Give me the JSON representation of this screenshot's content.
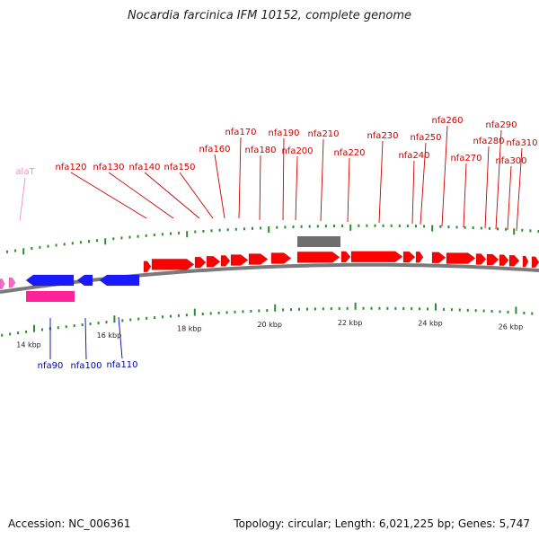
{
  "title": "Nocardia farcinica IFM 10152, complete genome",
  "footer": {
    "accession": "Accession: NC_006361",
    "stats": "Topology: circular; Length: 6,021,225 bp; Genes: 5,747"
  },
  "colors": {
    "forward_gene": "#ff0000",
    "reverse_gene": "#1a1aff",
    "rna_gene": "#ff66cc",
    "forward_label": "#cc0000",
    "reverse_label": "#0000bb",
    "rna_label": "#ff88c0",
    "other_feature": "#6e6e6e",
    "reverse_rna_feature": "#ff2299",
    "backbone": "#7a7a7a",
    "tick": "#2e8b2e",
    "axis_label": "#222222"
  },
  "axis": {
    "unit": "kbp",
    "major_ticks": [
      {
        "kbp": 14,
        "label": "14 kbp"
      },
      {
        "kbp": 16,
        "label": "16 kbp"
      },
      {
        "kbp": 18,
        "label": "18 kbp"
      },
      {
        "kbp": 20,
        "label": "20 kbp"
      },
      {
        "kbp": 22,
        "label": "22 kbp"
      },
      {
        "kbp": 24,
        "label": "24 kbp"
      },
      {
        "kbp": 26,
        "label": "26 kbp"
      }
    ]
  },
  "labels": {
    "forward": [
      "nfa120",
      "nfa130",
      "nfa140",
      "nfa150",
      "nfa160",
      "nfa170",
      "nfa180",
      "nfa190",
      "nfa200",
      "nfa210",
      "nfa220",
      "nfa230",
      "nfa240",
      "nfa250",
      "nfa260",
      "nfa270",
      "nfa280",
      "nfa290",
      "nfa300",
      "nfa310"
    ],
    "reverse": [
      "nfa90",
      "nfa100",
      "nfa110"
    ],
    "rna": [
      "alaT"
    ]
  }
}
